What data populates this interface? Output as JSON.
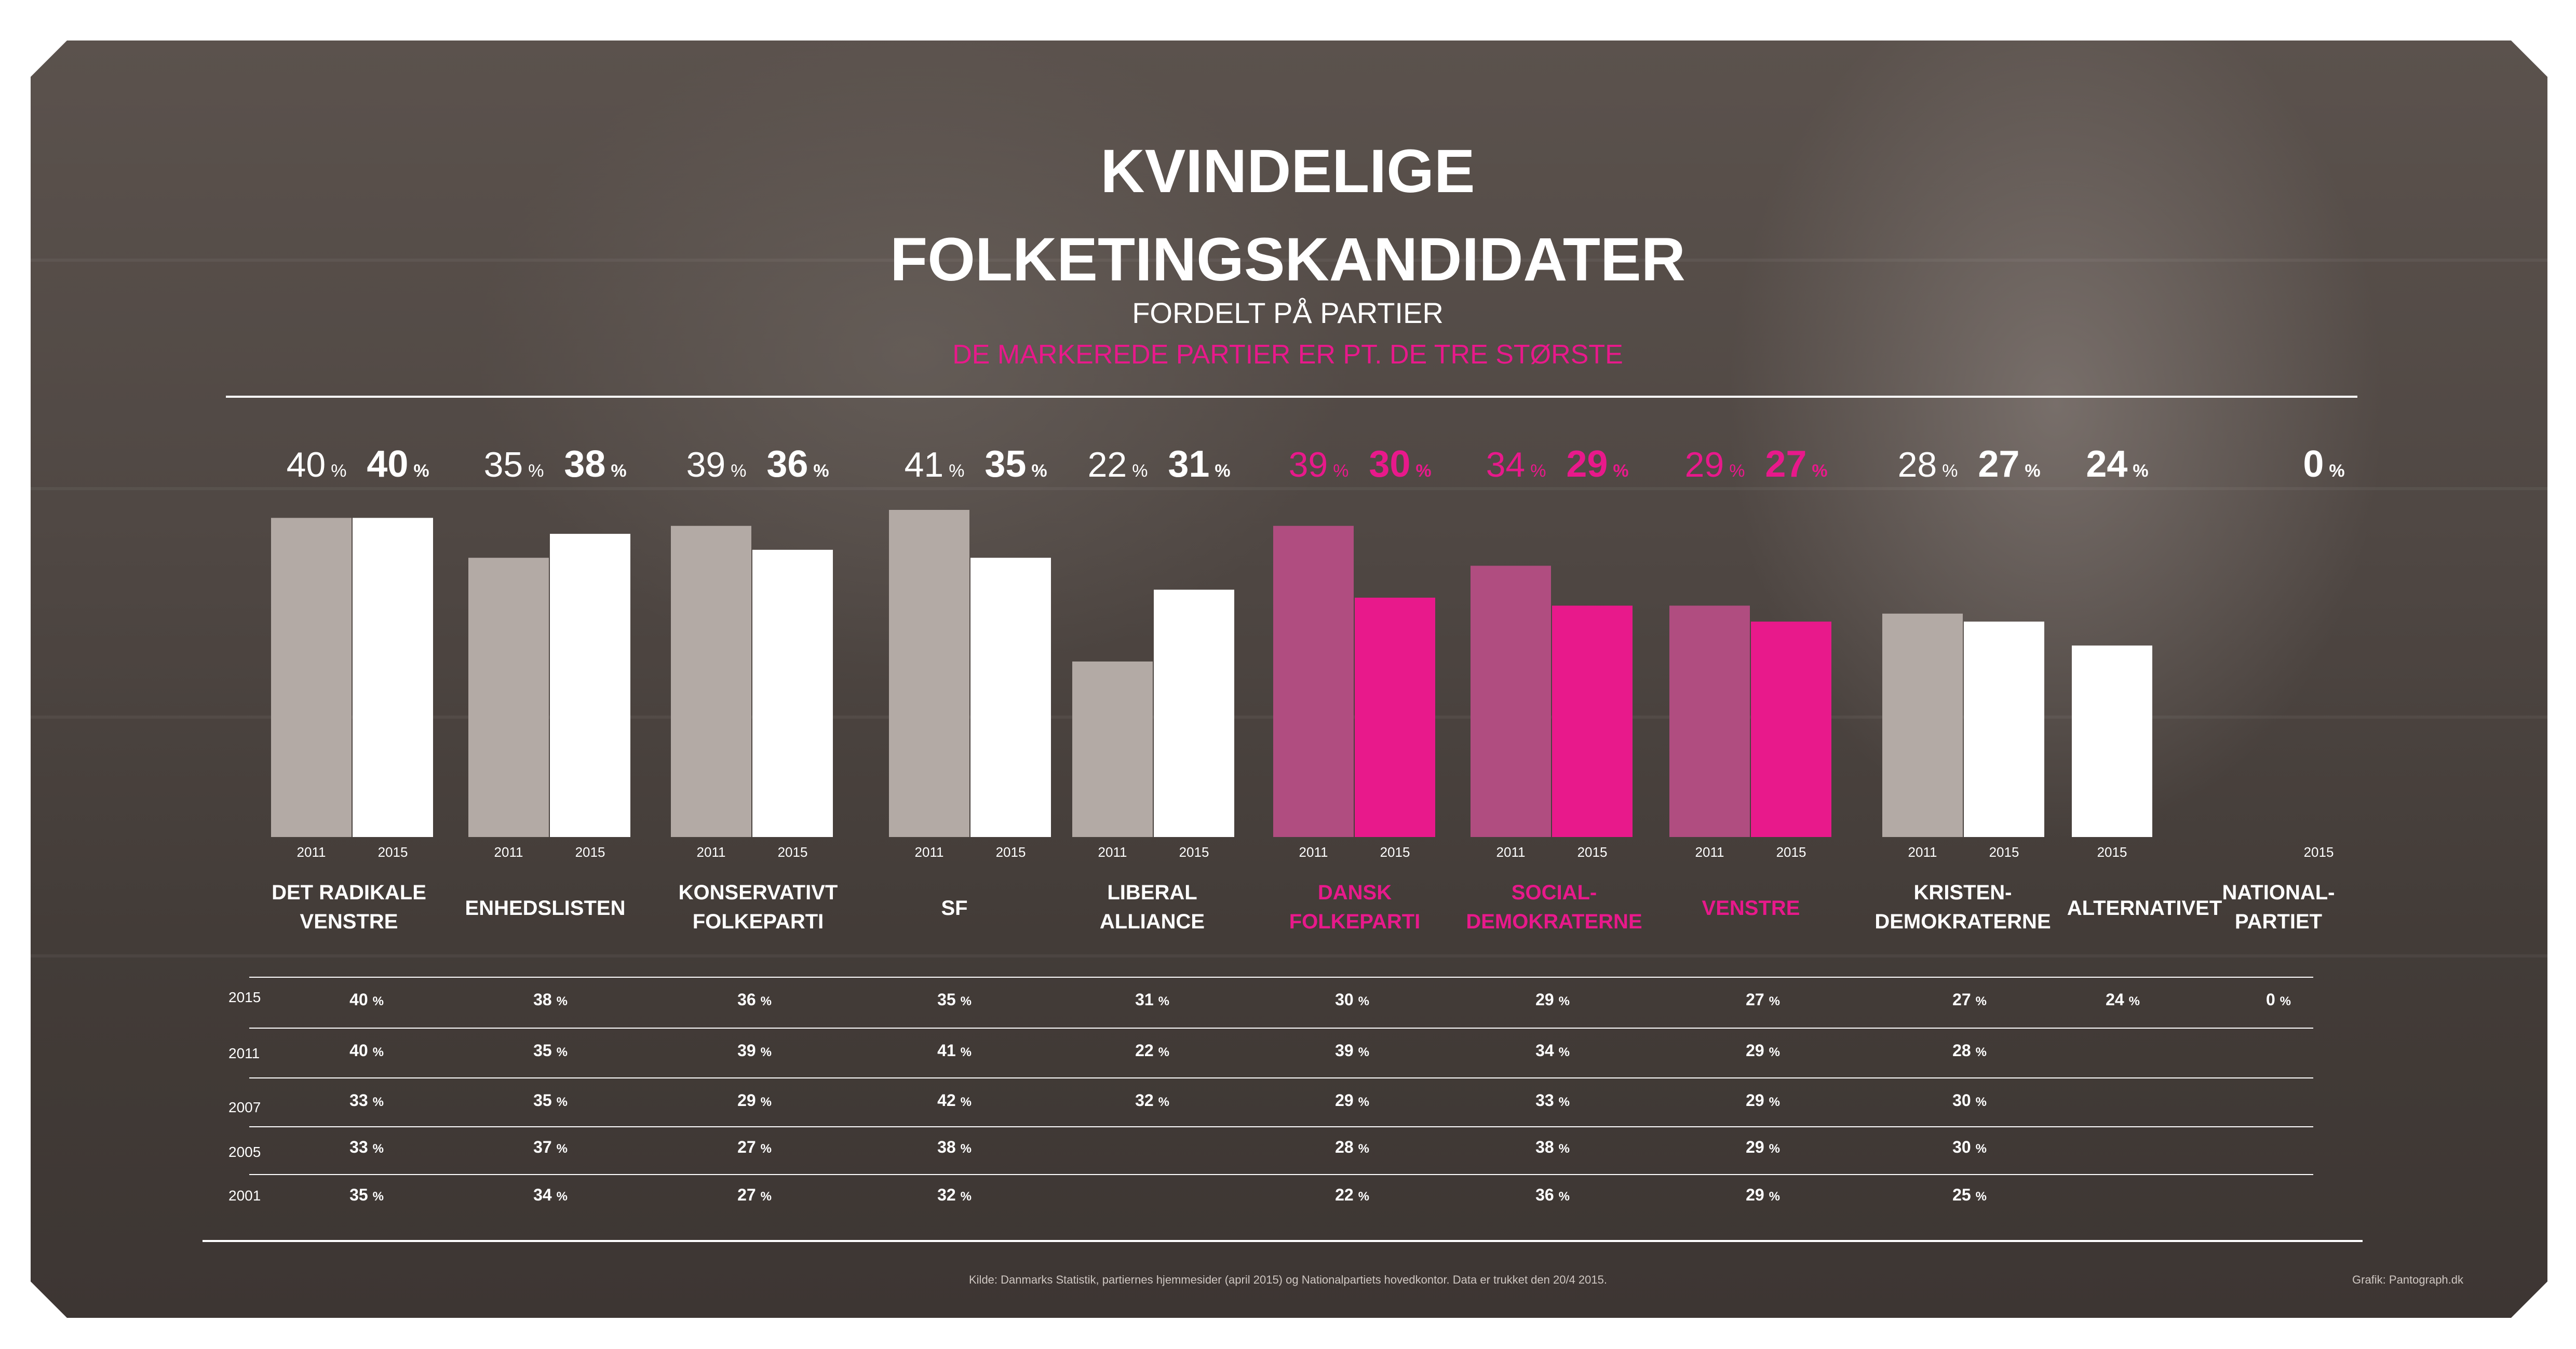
{
  "chart_data": {
    "type": "bar",
    "title": "KVINDELIGE FOLKETINGSKANDIDATER",
    "subtitle": "FORDELT PÅ PARTIER",
    "note": "DE MARKEREDE PARTIER ER PT. DE TRE STØRSTE",
    "unit": "%",
    "ylim": [
      0,
      41
    ],
    "years": [
      "2011",
      "2015"
    ],
    "categories": [
      {
        "label": [
          "DET RADIKALE",
          "VENSTRE"
        ],
        "highlight": false,
        "v2011": 40,
        "v2015": 40
      },
      {
        "label": [
          "ENHEDSLISTEN"
        ],
        "highlight": false,
        "v2011": 35,
        "v2015": 38
      },
      {
        "label": [
          "KONSERVATIVT",
          "FOLKEPARTI"
        ],
        "highlight": false,
        "v2011": 39,
        "v2015": 36
      },
      {
        "label": [
          "SF"
        ],
        "highlight": false,
        "v2011": 41,
        "v2015": 35
      },
      {
        "label": [
          "LIBERAL",
          "ALLIANCE"
        ],
        "highlight": false,
        "v2011": 22,
        "v2015": 31
      },
      {
        "label": [
          "DANSK",
          "FOLKEPARTI"
        ],
        "highlight": true,
        "v2011": 39,
        "v2015": 30
      },
      {
        "label": [
          "SOCIAL-",
          "DEMOKRATERNE"
        ],
        "highlight": true,
        "v2011": 34,
        "v2015": 29
      },
      {
        "label": [
          "VENSTRE"
        ],
        "highlight": true,
        "v2011": 29,
        "v2015": 27
      },
      {
        "label": [
          "KRISTEN-",
          "DEMOKRATERNE"
        ],
        "highlight": false,
        "v2011": 28,
        "v2015": 27
      },
      {
        "label": [
          "ALTERNATIVET"
        ],
        "highlight": false,
        "v2011": null,
        "v2015": 24
      },
      {
        "label": [
          "NATIONAL-",
          "PARTIET"
        ],
        "highlight": false,
        "v2011": null,
        "v2015": 0
      }
    ],
    "table": {
      "rows": [
        {
          "year": "2015",
          "values": [
            "40",
            "38",
            "36",
            "35",
            "31",
            "30",
            "29",
            "27",
            "27",
            "24",
            "0"
          ]
        },
        {
          "year": "2011",
          "values": [
            "40",
            "35",
            "39",
            "41",
            "22",
            "39",
            "34",
            "29",
            "28",
            "",
            ""
          ]
        },
        {
          "year": "2007",
          "values": [
            "33",
            "35",
            "29",
            "42",
            "32",
            "29",
            "33",
            "29",
            "30",
            "",
            ""
          ]
        },
        {
          "year": "2005",
          "values": [
            "33",
            "37",
            "27",
            "38",
            "",
            "28",
            "38",
            "29",
            "30",
            "",
            ""
          ]
        },
        {
          "year": "2001",
          "values": [
            "35",
            "34",
            "27",
            "32",
            "",
            "22",
            "36",
            "29",
            "25",
            "",
            ""
          ]
        }
      ]
    },
    "colors": {
      "bar_2015": "#ffffff",
      "bar_2011": "#b3aaa5",
      "highlight_2015": "#e8198b",
      "highlight_2011": "#b04d80"
    }
  },
  "footer": {
    "source": "Kilde: Danmarks Statistik, partiernes hjemmesider (april 2015) og Nationalpartiets hovedkontor. Data er trukket den 20/4 2015.",
    "credit": "Grafik: Pantograph.dk"
  }
}
